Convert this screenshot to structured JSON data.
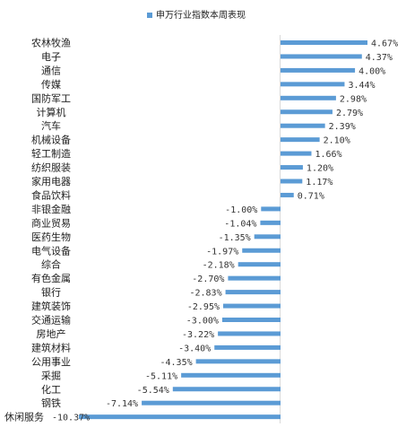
{
  "chart_data": {
    "type": "bar",
    "orientation": "horizontal",
    "title": "",
    "xlabel": "",
    "ylabel": "",
    "legend_position": "top-center",
    "grid": false,
    "xlim": [
      -10.37,
      4.67
    ],
    "series": [
      {
        "name": "申万行业指数本周表现",
        "color": "#5b9bd5",
        "values": [
          4.67,
          4.37,
          4.0,
          3.44,
          2.98,
          2.79,
          2.39,
          2.1,
          1.66,
          1.2,
          1.17,
          0.71,
          -1.0,
          -1.04,
          -1.35,
          -1.97,
          -2.18,
          -2.7,
          -2.83,
          -2.95,
          -3.0,
          -3.22,
          -3.4,
          -4.35,
          -5.11,
          -5.54,
          -7.14,
          -10.37
        ]
      }
    ],
    "categories": [
      "农林牧渔",
      "电子",
      "通信",
      "传媒",
      "国防军工",
      "计算机",
      "汽车",
      "机械设备",
      "轻工制造",
      "纺织服装",
      "家用电器",
      "食品饮料",
      "非银金融",
      "商业贸易",
      "医药生物",
      "电气设备",
      "综合",
      "有色金属",
      "银行",
      "建筑装饰",
      "交通运输",
      "房地产",
      "建筑材料",
      "公用事业",
      "采掘",
      "化工",
      "钢铁",
      "休闲服务"
    ],
    "value_labels": [
      "4.67%",
      "4.37%",
      "4.00%",
      "3.44%",
      "2.98%",
      "2.79%",
      "2.39%",
      "2.10%",
      "1.66%",
      "1.20%",
      "1.17%",
      "0.71%",
      "-1.00%",
      "-1.04%",
      "-1.35%",
      "-1.97%",
      "-2.18%",
      "-2.70%",
      "-2.83%",
      "-2.95%",
      "-3.00%",
      "-3.22%",
      "-3.40%",
      "-4.35%",
      "-5.11%",
      "-5.54%",
      "-7.14%",
      "-10.37%"
    ]
  }
}
